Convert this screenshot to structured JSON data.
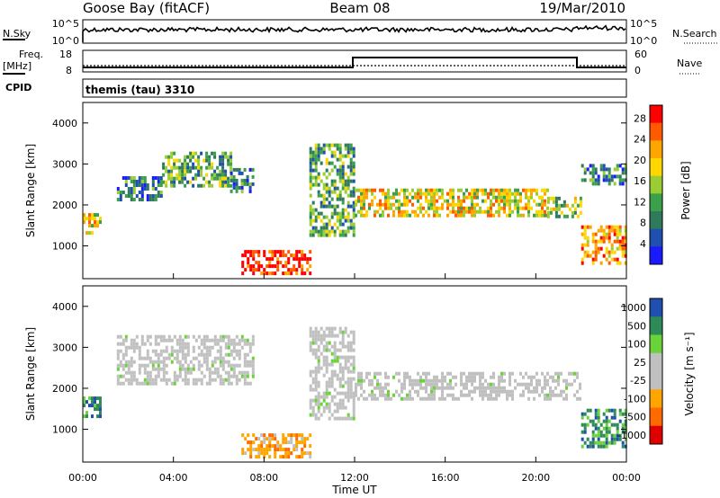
{
  "header": {
    "station": "Goose Bay (fitACF)",
    "beam": "Beam 08",
    "date": "19/Mar/2010"
  },
  "top_panels": {
    "nsky_label": "N.Sky",
    "nsky_ticks": [
      "10^5",
      "10^0"
    ],
    "nsearch_label": "N.Search",
    "nsearch_ticks": [
      "10^5",
      "10^0"
    ],
    "freq_label": "Freq.",
    "freq_unit": "[MHz]",
    "freq_ticks": [
      "18",
      "8"
    ],
    "nave_label": "Nave",
    "nave_ticks": [
      "60",
      "0"
    ],
    "cpid_label": "CPID",
    "cpid_text": "themis (tau) 3310"
  },
  "colors": {
    "power_scale": [
      "#1a1aff",
      "#1f4fb0",
      "#2f7a5a",
      "#3aa04a",
      "#9acd32",
      "#ffd700",
      "#ffa500",
      "#ff5a00",
      "#ff0000"
    ],
    "velocity_scale": [
      "#e00000",
      "#ff6a00",
      "#ffa500",
      "#c0c0c0",
      "#c0c0c0",
      "#6bd33a",
      "#2e8b57",
      "#1f4fb0"
    ],
    "ground_scatter": "#c0c0c0"
  },
  "chart_data": [
    {
      "type": "heatmap",
      "name": "power",
      "ylabel": "Slant Range [km]",
      "ylim": [
        200,
        4500
      ],
      "y_ticks": [
        "1000",
        "2000",
        "3000",
        "4000"
      ],
      "colorbar_label": "Power [dB]",
      "colorbar_ticks": [
        "4",
        "8",
        "12",
        "16",
        "20",
        "24",
        "28"
      ],
      "blobs": [
        {
          "t0": 0.0,
          "t1": 0.8,
          "r0": 1300,
          "r1": 1800,
          "level": 5
        },
        {
          "t0": 1.5,
          "t1": 3.5,
          "r0": 2100,
          "r1": 2700,
          "level": 2
        },
        {
          "t0": 3.5,
          "t1": 6.5,
          "r0": 2500,
          "r1": 3300,
          "level": 3
        },
        {
          "t0": 6.5,
          "t1": 7.5,
          "r0": 2300,
          "r1": 2900,
          "level": 2
        },
        {
          "t0": 7.0,
          "t1": 10.0,
          "r0": 300,
          "r1": 900,
          "level": 8
        },
        {
          "t0": 10.0,
          "t1": 12.0,
          "r0": 1300,
          "r1": 3500,
          "level": 3
        },
        {
          "t0": 12.0,
          "t1": 20.5,
          "r0": 1700,
          "r1": 2400,
          "level": 5
        },
        {
          "t0": 20.5,
          "t1": 22.0,
          "r0": 1700,
          "r1": 2200,
          "level": 4
        },
        {
          "t0": 22.0,
          "t1": 24.0,
          "r0": 600,
          "r1": 1500,
          "level": 6
        },
        {
          "t0": 22.0,
          "t1": 24.0,
          "r0": 2500,
          "r1": 3000,
          "level": 2
        }
      ]
    },
    {
      "type": "heatmap",
      "name": "velocity",
      "ylabel": "Slant Range [km]",
      "xlabel": "Time UT",
      "ylim": [
        200,
        4500
      ],
      "y_ticks": [
        "1000",
        "2000",
        "3000",
        "4000"
      ],
      "x_ticks": [
        "00:00",
        "04:00",
        "08:00",
        "12:00",
        "16:00",
        "20:00",
        "00:00"
      ],
      "colorbar_label": "Velocity [m s⁻¹]",
      "colorbar_ticks": [
        "1000",
        "500",
        "100",
        "25",
        "-25",
        "-100",
        "-500",
        "-1000"
      ],
      "blobs": [
        {
          "t0": 0.0,
          "t1": 0.8,
          "r0": 1300,
          "r1": 1800,
          "vel": "pos"
        },
        {
          "t0": 1.5,
          "t1": 7.5,
          "r0": 2100,
          "r1": 3300,
          "vel": "gs"
        },
        {
          "t0": 7.0,
          "t1": 10.0,
          "r0": 300,
          "r1": 900,
          "vel": "neg"
        },
        {
          "t0": 10.0,
          "t1": 12.0,
          "r0": 1300,
          "r1": 3500,
          "vel": "gs"
        },
        {
          "t0": 12.0,
          "t1": 22.0,
          "r0": 1700,
          "r1": 2400,
          "vel": "gs"
        },
        {
          "t0": 22.0,
          "t1": 24.0,
          "r0": 600,
          "r1": 1500,
          "vel": "pos"
        }
      ]
    }
  ]
}
